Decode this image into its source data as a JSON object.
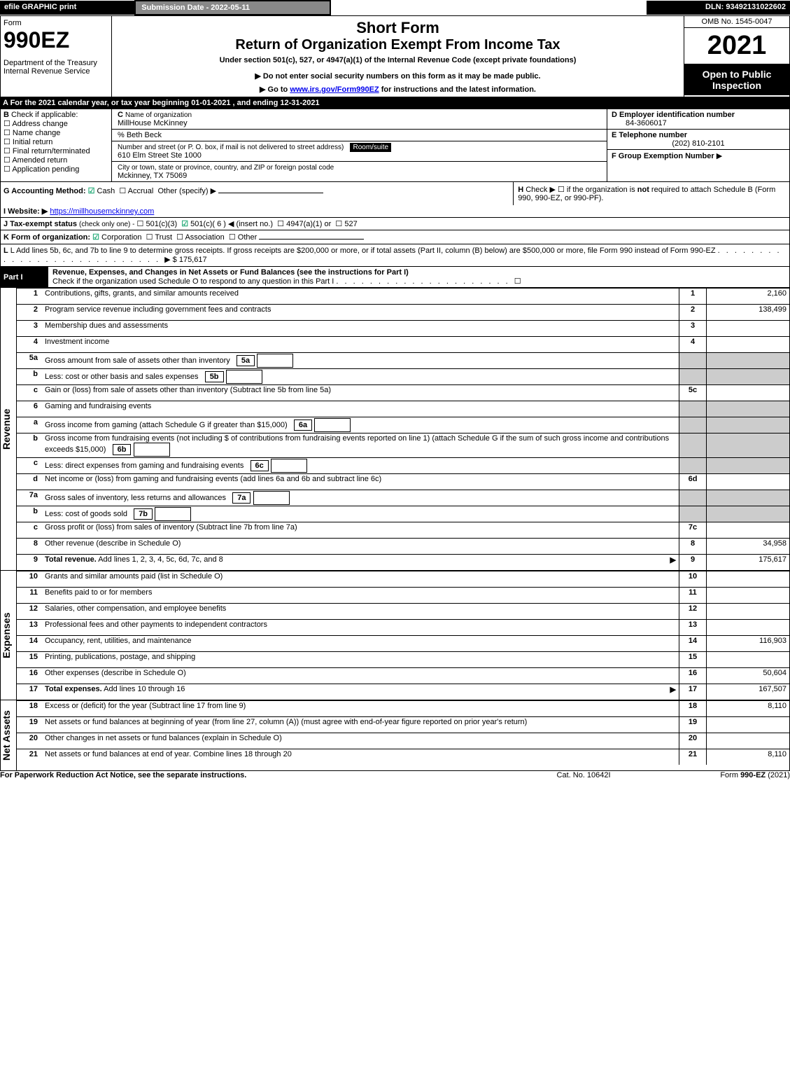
{
  "top_bar": {
    "efile": "efile GRAPHIC print",
    "sub_date_label": "Submission Date - 2022-05-11",
    "dln": "DLN: 93492131022602"
  },
  "header": {
    "form_word": "Form",
    "form_num": "990EZ",
    "dept": "Department of the Treasury",
    "irs": "Internal Revenue Service",
    "short_form": "Short Form",
    "title": "Return of Organization Exempt From Income Tax",
    "subtitle": "Under section 501(c), 527, or 4947(a)(1) of the Internal Revenue Code (except private foundations)",
    "warn1": "▶ Do not enter social security numbers on this form as it may be made public.",
    "warn2_pre": "▶ Go to ",
    "warn2_link": "www.irs.gov/Form990EZ",
    "warn2_post": " for instructions and the latest information.",
    "omb": "OMB No. 1545-0047",
    "year": "2021",
    "open": "Open to Public Inspection"
  },
  "section_A": "A  For the 2021 calendar year, or tax year beginning 01-01-2021 , and ending 12-31-2021",
  "section_B": {
    "title": "B",
    "check_if": "Check if applicable:",
    "items": [
      "Address change",
      "Name change",
      "Initial return",
      "Final return/terminated",
      "Amended return",
      "Application pending"
    ]
  },
  "section_C": {
    "c_label": "C",
    "name_label": "Name of organization",
    "org_name": "MillHouse McKinney",
    "care_of": "% Beth Beck",
    "addr_label": "Number and street (or P. O. box, if mail is not delivered to street address)",
    "room_label": "Room/suite",
    "addr": "610 Elm Street Ste 1000",
    "city_label": "City or town, state or province, country, and ZIP or foreign postal code",
    "city": "Mckinney, TX  75069"
  },
  "section_D": {
    "label": "D Employer identification number",
    "val": "84-3606017"
  },
  "section_E": {
    "label": "E Telephone number",
    "val": "(202) 810-2101"
  },
  "section_F": {
    "label": "F Group Exemption Number",
    "arrow": "▶"
  },
  "section_G": {
    "label": "G Accounting Method:",
    "cash": "Cash",
    "accrual": "Accrual",
    "other": "Other (specify) ▶"
  },
  "section_H": {
    "label": "H",
    "text": "Check ▶  ☐  if the organization is ",
    "not": "not",
    "text2": " required to attach Schedule B (Form 990, 990-EZ, or 990-PF)."
  },
  "section_I": {
    "label": "I Website: ▶",
    "url": "https://millhousemckinney.com"
  },
  "section_J": {
    "label": "J Tax-exempt status",
    "note": "(check only one) -",
    "o1": "501(c)(3)",
    "o2": "501(c)( 6 ) ◀ (insert no.)",
    "o3": "4947(a)(1) or",
    "o4": "527"
  },
  "section_K": {
    "label": "K Form of organization:",
    "opts": [
      "Corporation",
      "Trust",
      "Association",
      "Other"
    ]
  },
  "section_L": {
    "text": "L Add lines 5b, 6c, and 7b to line 9 to determine gross receipts. If gross receipts are $200,000 or more, or if total assets (Part II, column (B) below) are $500,000 or more, file Form 990 instead of Form 990-EZ",
    "amount": "▶ $ 175,617"
  },
  "part1": {
    "title": "Part I",
    "desc": "Revenue, Expenses, and Changes in Net Assets or Fund Balances (see the instructions for Part I)",
    "check_o": "Check if the organization used Schedule O to respond to any question in this Part I",
    "check_box": "☐"
  },
  "revenue_label": "Revenue",
  "expenses_label": "Expenses",
  "netassets_label": "Net Assets",
  "lines": [
    {
      "n": "1",
      "d": "Contributions, gifts, grants, and similar amounts received",
      "r": "1",
      "v": "2,160"
    },
    {
      "n": "2",
      "d": "Program service revenue including government fees and contracts",
      "r": "2",
      "v": "138,499"
    },
    {
      "n": "3",
      "d": "Membership dues and assessments",
      "r": "3",
      "v": ""
    },
    {
      "n": "4",
      "d": "Investment income",
      "r": "4",
      "v": ""
    },
    {
      "n": "5a",
      "d": "Gross amount from sale of assets other than inventory",
      "sub": "5a",
      "r": "",
      "v": "",
      "grey": true
    },
    {
      "n": "b",
      "d": "Less: cost or other basis and sales expenses",
      "sub": "5b",
      "r": "",
      "v": "",
      "grey": true
    },
    {
      "n": "c",
      "d": "Gain or (loss) from sale of assets other than inventory (Subtract line 5b from line 5a)",
      "r": "5c",
      "v": ""
    },
    {
      "n": "6",
      "d": "Gaming and fundraising events",
      "r": "",
      "v": "",
      "grey": true
    },
    {
      "n": "a",
      "d": "Gross income from gaming (attach Schedule G if greater than $15,000)",
      "sub": "6a",
      "r": "",
      "v": "",
      "grey": true
    },
    {
      "n": "b",
      "d": "Gross income from fundraising events (not including $                       of contributions from fundraising events reported on line 1) (attach Schedule G if the sum of such gross income and contributions exceeds $15,000)",
      "sub": "6b",
      "r": "",
      "v": "",
      "grey": true
    },
    {
      "n": "c",
      "d": "Less: direct expenses from gaming and fundraising events",
      "sub": "6c",
      "r": "",
      "v": "",
      "grey": true
    },
    {
      "n": "d",
      "d": "Net income or (loss) from gaming and fundraising events (add lines 6a and 6b and subtract line 6c)",
      "r": "6d",
      "v": ""
    },
    {
      "n": "7a",
      "d": "Gross sales of inventory, less returns and allowances",
      "sub": "7a",
      "r": "",
      "v": "",
      "grey": true
    },
    {
      "n": "b",
      "d": "Less: cost of goods sold",
      "sub": "7b",
      "r": "",
      "v": "",
      "grey": true
    },
    {
      "n": "c",
      "d": "Gross profit or (loss) from sales of inventory (Subtract line 7b from line 7a)",
      "r": "7c",
      "v": ""
    },
    {
      "n": "8",
      "d": "Other revenue (describe in Schedule O)",
      "r": "8",
      "v": "34,958"
    },
    {
      "n": "9",
      "d": "Total revenue. Add lines 1, 2, 3, 4, 5c, 6d, 7c, and 8",
      "arrow": "▶",
      "r": "9",
      "v": "175,617",
      "bold": true
    }
  ],
  "exp_lines": [
    {
      "n": "10",
      "d": "Grants and similar amounts paid (list in Schedule O)",
      "r": "10",
      "v": ""
    },
    {
      "n": "11",
      "d": "Benefits paid to or for members",
      "r": "11",
      "v": ""
    },
    {
      "n": "12",
      "d": "Salaries, other compensation, and employee benefits",
      "r": "12",
      "v": ""
    },
    {
      "n": "13",
      "d": "Professional fees and other payments to independent contractors",
      "r": "13",
      "v": ""
    },
    {
      "n": "14",
      "d": "Occupancy, rent, utilities, and maintenance",
      "r": "14",
      "v": "116,903"
    },
    {
      "n": "15",
      "d": "Printing, publications, postage, and shipping",
      "r": "15",
      "v": ""
    },
    {
      "n": "16",
      "d": "Other expenses (describe in Schedule O)",
      "r": "16",
      "v": "50,604"
    },
    {
      "n": "17",
      "d": "Total expenses. Add lines 10 through 16",
      "arrow": "▶",
      "r": "17",
      "v": "167,507",
      "bold": true
    }
  ],
  "net_lines": [
    {
      "n": "18",
      "d": "Excess or (deficit) for the year (Subtract line 17 from line 9)",
      "r": "18",
      "v": "8,110"
    },
    {
      "n": "19",
      "d": "Net assets or fund balances at beginning of year (from line 27, column (A)) (must agree with end-of-year figure reported on prior year's return)",
      "r": "19",
      "v": ""
    },
    {
      "n": "20",
      "d": "Other changes in net assets or fund balances (explain in Schedule O)",
      "r": "20",
      "v": ""
    },
    {
      "n": "21",
      "d": "Net assets or fund balances at end of year. Combine lines 18 through 20",
      "r": "21",
      "v": "8,110"
    }
  ],
  "footer": {
    "paperwork": "For Paperwork Reduction Act Notice, see the separate instructions.",
    "cat": "Cat. No. 10642I",
    "form": "Form 990-EZ (2021)"
  }
}
